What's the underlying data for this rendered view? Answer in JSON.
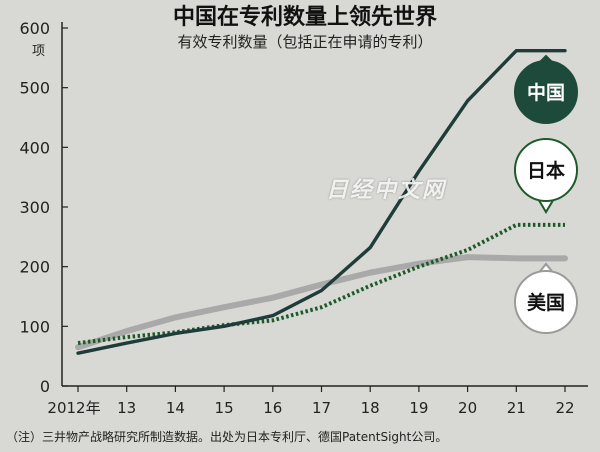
{
  "header": {
    "title": "中国在专利数量上领先世界",
    "subtitle": "有效专利数量（包括正在申请的专利）"
  },
  "y_unit": "项",
  "footnote": "（注）三井物产战略研究所制造数据。出处为日本专利厅、德国PatentSight公司。",
  "watermark": "日经中文网",
  "colors": {
    "background": "#d8d9d4",
    "china": "#1f3b3a",
    "china_bubble": "#1d4a3a",
    "japan": "#1d5a2a",
    "usa": "#a9a9a9",
    "axis": "#222222"
  },
  "chart_data": {
    "type": "line",
    "x": [
      "2012年",
      "13",
      "14",
      "15",
      "16",
      "17",
      "18",
      "19",
      "20",
      "21",
      "22"
    ],
    "ylim": [
      0,
      600
    ],
    "yticks": [
      0,
      100,
      200,
      300,
      400,
      500,
      600
    ],
    "grid": false,
    "series": [
      {
        "name": "中国",
        "style": "solid-dark",
        "values": [
          55,
          72,
          88,
          100,
          118,
          160,
          232,
          360,
          478,
          562,
          562
        ]
      },
      {
        "name": "日本",
        "style": "dotted-green",
        "values": [
          72,
          82,
          90,
          102,
          110,
          132,
          168,
          200,
          228,
          270,
          270
        ]
      },
      {
        "name": "美国",
        "style": "solid-gray",
        "values": [
          65,
          92,
          115,
          132,
          148,
          170,
          190,
          205,
          216,
          214,
          214
        ]
      }
    ]
  }
}
